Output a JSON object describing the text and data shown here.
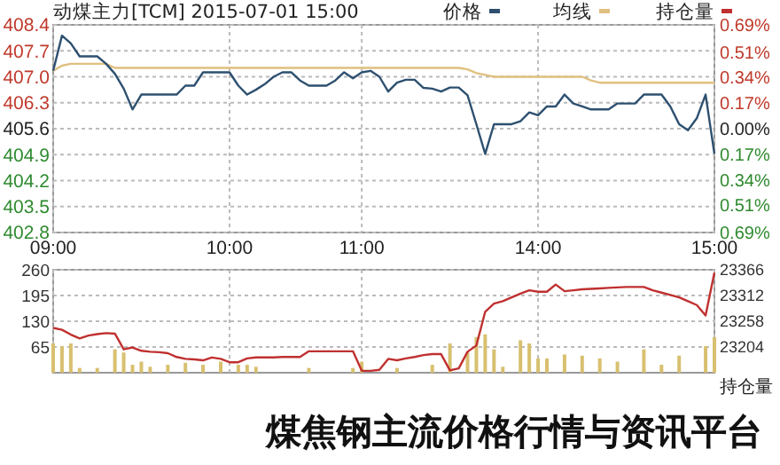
{
  "chart_data": [
    {
      "type": "line",
      "title": "动煤主力[TCM] 2015-07-01 15:00",
      "categories": [
        "09:00",
        null,
        null,
        null,
        null,
        null,
        null,
        null,
        null,
        null,
        null,
        null,
        null,
        null,
        null,
        null,
        null,
        null,
        null,
        null,
        "10:00",
        null,
        null,
        null,
        null,
        null,
        null,
        null,
        null,
        null,
        null,
        null,
        null,
        null,
        null,
        "11:00",
        null,
        null,
        null,
        null,
        null,
        null,
        null,
        null,
        null,
        null,
        null,
        null,
        null,
        null,
        null,
        null,
        null,
        null,
        null,
        "14:00",
        null,
        null,
        null,
        null,
        null,
        null,
        null,
        null,
        null,
        null,
        null,
        null,
        null,
        null,
        null,
        null,
        null,
        null,
        null,
        "15:00"
      ],
      "ylim": [
        402.8,
        408.4
      ],
      "yticks": [
        402.8,
        403.5,
        404.2,
        404.9,
        405.6,
        406.3,
        {
          "value": 407.0,
          "label": "407.0"
        },
        407.7,
        408.4
      ],
      "y2lim": [
        -0.69,
        0.69
      ],
      "y2ticks": [
        {
          "value": -0.69,
          "label": "0.69%"
        },
        {
          "value": -0.51,
          "label": "0.51%"
        },
        {
          "value": -0.34,
          "label": "0.34%"
        },
        {
          "value": -0.17,
          "label": "0.17%"
        },
        {
          "value": 0,
          "label": "0.00%"
        },
        {
          "value": 0.17,
          "label": "0.17%"
        },
        {
          "value": 0.34,
          "label": "0.34%"
        },
        {
          "value": 0.51,
          "label": "0.51%"
        },
        {
          "value": 0.69,
          "label": "0.69%"
        }
      ],
      "grid": true,
      "legend": "top right",
      "series": [
        {
          "name": "均线",
          "color": "#e0c080",
          "values": [
            407.16,
            407.3,
            407.35,
            407.35,
            407.35,
            407.35,
            407.35,
            407.24,
            407.24,
            407.24,
            407.24,
            407.24,
            407.24,
            407.24,
            407.24,
            407.24,
            407.24,
            407.24,
            407.24,
            407.24,
            407.24,
            407.24,
            407.24,
            407.24,
            407.24,
            407.24,
            407.24,
            407.24,
            407.24,
            407.24,
            407.24,
            407.24,
            407.24,
            407.24,
            407.24,
            407.24,
            407.24,
            407.24,
            407.24,
            407.24,
            407.24,
            407.24,
            407.24,
            407.24,
            407.24,
            407.24,
            407.24,
            407.2,
            407.1,
            407.05,
            407.0,
            407.0,
            407.0,
            407.0,
            407.0,
            407.0,
            407.0,
            407.0,
            407.0,
            407.0,
            407.0,
            406.9,
            406.84,
            406.84,
            406.84,
            406.84,
            406.84,
            406.84,
            406.84,
            406.84,
            406.84,
            406.84,
            406.84,
            406.84,
            406.84,
            406.84
          ]
        },
        {
          "name": "价格",
          "color": "#2e5070",
          "values": [
            407.16,
            408.11,
            407.9,
            407.55,
            407.55,
            407.55,
            407.35,
            407.08,
            406.68,
            406.12,
            406.52,
            406.52,
            406.52,
            406.52,
            406.52,
            406.76,
            406.76,
            407.12,
            407.12,
            407.12,
            407.12,
            406.76,
            406.52,
            406.65,
            406.8,
            407.0,
            407.12,
            407.12,
            406.9,
            406.76,
            406.76,
            406.76,
            406.9,
            407.12,
            406.96,
            407.12,
            407.16,
            407.0,
            406.6,
            406.84,
            406.92,
            406.92,
            406.7,
            406.68,
            406.6,
            406.71,
            406.71,
            406.5,
            405.72,
            404.92,
            405.72,
            405.72,
            405.72,
            405.8,
            406.04,
            405.96,
            406.2,
            406.2,
            406.52,
            406.28,
            406.2,
            406.12,
            406.12,
            406.12,
            406.28,
            406.28,
            406.28,
            406.52,
            406.52,
            406.52,
            406.2,
            405.72,
            405.56,
            405.88,
            406.52,
            404.92
          ]
        }
      ]
    },
    {
      "type": "bar",
      "categories": [
        null,
        null,
        null,
        null,
        null,
        null,
        null,
        null,
        null,
        null,
        null,
        null,
        null,
        null,
        null,
        null,
        null,
        null,
        null,
        null,
        null,
        null,
        null,
        null,
        null,
        null,
        null,
        null,
        null,
        null,
        null,
        null,
        null,
        null,
        null,
        null,
        null,
        null,
        null,
        null,
        null,
        null,
        null,
        null,
        null,
        null,
        null,
        null,
        null,
        null,
        null,
        null,
        null,
        null,
        null,
        null,
        null,
        null,
        null,
        null,
        null,
        null,
        null,
        null,
        null,
        null,
        null,
        null,
        null,
        null,
        null,
        null,
        null,
        null,
        null,
        null
      ],
      "tick_labels": "y",
      "ylim": [
        0,
        260
      ],
      "yticks": [
        65,
        130,
        195,
        260
      ],
      "y2lim": [
        23150,
        23366
      ],
      "y2ticks": [
        23204,
        23258,
        23312,
        23366
      ],
      "y2label": "持仓量",
      "grid": true,
      "legend": "top right",
      "annotations": [
        "煤焦钢主流价格行情与资讯平台"
      ],
      "series": [
        {
          "color": "#d8c070",
          "values": [
            74,
            67,
            74,
            12,
            null,
            12,
            null,
            59,
            51,
            20,
            28,
            15,
            null,
            20,
            null,
            25,
            null,
            20,
            null,
            28,
            null,
            20,
            20,
            15,
            null,
            null,
            null,
            null,
            null,
            12,
            null,
            null,
            null,
            null,
            12,
            28,
            null,
            null,
            null,
            12,
            null,
            null,
            null,
            20,
            null,
            74,
            null,
            51,
            90,
            97,
            59,
            15,
            null,
            82,
            74,
            36,
            36,
            null,
            46,
            null,
            43,
            null,
            36,
            null,
            28,
            null,
            null,
            59,
            null,
            20,
            null,
            43,
            null,
            null,
            67,
            90
          ]
        },
        {
          "name": "持仓量",
          "type": "line",
          "axis": "y2",
          "color": "#c03030",
          "values": [
            23244,
            23240,
            23230,
            23222,
            23228,
            23231,
            23233,
            23232,
            23199,
            23203,
            23196,
            23194,
            23193,
            23191,
            23183,
            23179,
            23178,
            23176,
            23182,
            23179,
            23172,
            23172,
            23180,
            23182,
            23182,
            23182,
            23183,
            23183,
            23183,
            23195,
            23195,
            23195,
            23195,
            23195,
            23195,
            23154,
            23154,
            23156,
            23179,
            23176,
            23180,
            23183,
            23187,
            23189,
            23189,
            23155,
            23159,
            23194,
            23207,
            23278,
            23295,
            23300,
            23308,
            23316,
            23323,
            23320,
            23320,
            23335,
            23321,
            23323,
            23325,
            23326,
            23327,
            23328,
            23329,
            23330,
            23330,
            23330,
            23323,
            23318,
            23313,
            23308,
            23300,
            23292,
            23270,
            23360
          ]
        }
      ]
    }
  ]
}
